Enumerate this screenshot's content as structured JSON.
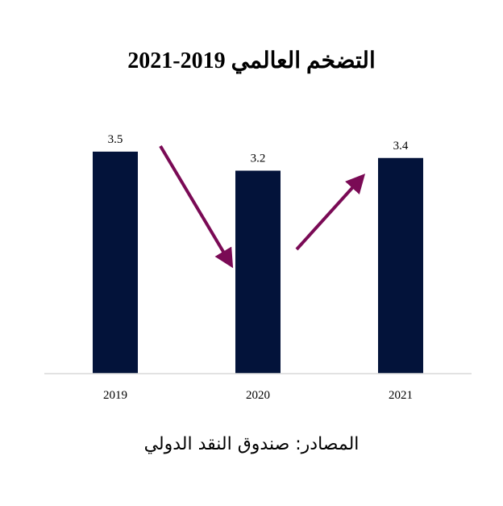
{
  "chart_data": {
    "type": "bar",
    "title": "التضخم العالمي 2019-2021",
    "categories": [
      "2019",
      "2020",
      "2021"
    ],
    "values": [
      3.5,
      3.2,
      3.4
    ],
    "data_labels": [
      "3.5",
      "3.2",
      "3.4"
    ],
    "xlabel": "",
    "ylabel": "",
    "ylim": [
      0,
      3.5
    ],
    "grid": false,
    "legend": "none",
    "annotations": [
      "arrow-down 2019→2020",
      "arrow-up 2020→2021"
    ]
  },
  "colors": {
    "bar": "#03133a",
    "arrow": "#7a0a55",
    "baseline": "#d9d9d9"
  },
  "source": "المصادر: صندوق النقد الدولي"
}
